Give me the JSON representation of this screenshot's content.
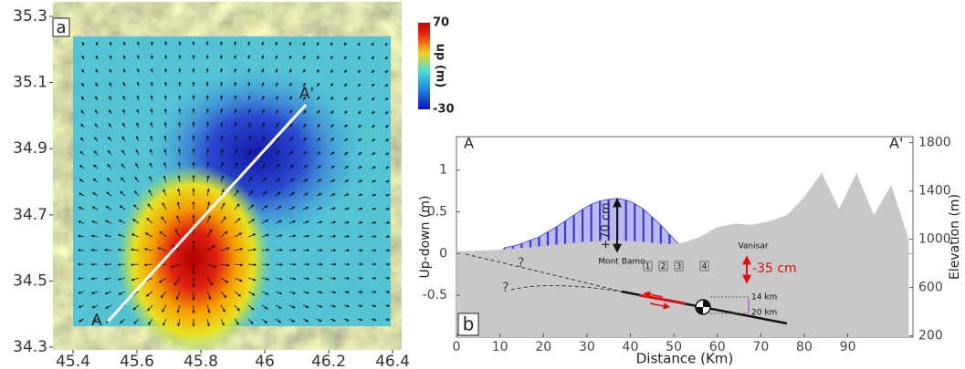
{
  "chart_data": [
    {
      "type": "heatmap",
      "xlim": [
        45.4,
        46.4
      ],
      "ylim": [
        34.3,
        35.3
      ],
      "xticks": [
        45.4,
        45.6,
        45.8,
        46,
        46.2,
        46.4
      ],
      "yticks": [
        34.3,
        34.5,
        34.7,
        34.9,
        35.1,
        35.3
      ],
      "clim": [
        -30,
        70
      ],
      "cticks": [
        70,
        -30
      ],
      "clabel": "up (m)",
      "annotations": [
        "a",
        "A",
        "A'"
      ]
    },
    {
      "type": "profile",
      "xlabel": "Distance (Km)",
      "ylabel": "Up-down (m)",
      "y2label": "Elevation (m)",
      "xlim": [
        0,
        105
      ],
      "ylim": [
        -1,
        1.4
      ],
      "y2lim": [
        190,
        1850
      ],
      "xticks": [
        0,
        10,
        20,
        30,
        40,
        50,
        60,
        70,
        80,
        90
      ],
      "yticks": [
        -0.5,
        0,
        0.5,
        1
      ],
      "y2ticks": [
        200,
        600,
        1000,
        1400,
        1800
      ],
      "series": [
        {
          "color": "#3a3ad0",
          "x": [
            11,
            13,
            15,
            17,
            19,
            21,
            23,
            25,
            27,
            29,
            31,
            33,
            35,
            37,
            39,
            41,
            43,
            45,
            47,
            49,
            51,
            53,
            55,
            57,
            59,
            61,
            63,
            65,
            67,
            69,
            71,
            73,
            75,
            77,
            79,
            81,
            83,
            85,
            87,
            89,
            91,
            93,
            95,
            97,
            99,
            101,
            103
          ],
          "values": [
            0.07,
            0.09,
            0.12,
            0.16,
            0.2,
            0.26,
            0.32,
            0.39,
            0.46,
            0.53,
            0.59,
            0.63,
            0.65,
            0.66,
            0.64,
            0.6,
            0.53,
            0.44,
            0.34,
            0.23,
            0.12,
            0.02,
            -0.07,
            -0.15,
            -0.22,
            -0.28,
            -0.32,
            -0.35,
            -0.36,
            -0.35,
            -0.32,
            -0.28,
            -0.24,
            -0.2,
            -0.16,
            -0.13,
            -0.1,
            -0.08,
            -0.06,
            -0.05,
            -0.04,
            -0.03,
            -0.03,
            -0.02,
            -0.02,
            -0.01,
            -0.01
          ]
        },
        {
          "color": "#c8c8c8",
          "axis": "y2",
          "x": [
            0,
            4,
            8,
            12,
            16,
            20,
            24,
            28,
            32,
            36,
            40,
            44,
            48,
            52,
            56,
            60,
            64,
            68,
            72,
            76,
            80,
            84,
            88,
            92,
            96,
            100,
            104
          ],
          "values": [
            900,
            905,
            910,
            920,
            930,
            945,
            960,
            975,
            985,
            990,
            985,
            975,
            960,
            970,
            1020,
            1100,
            1130,
            1120,
            1150,
            1200,
            1350,
            1550,
            1250,
            1550,
            1200,
            1450,
            1000
          ]
        }
      ],
      "annotations": [
        "A",
        "A'",
        "b",
        "+70 cm",
        "-35 cm",
        "Mont Bamo",
        "1",
        "2",
        "3",
        "4",
        "Vanisar",
        "?",
        "?",
        "14 km",
        "20 km"
      ]
    }
  ]
}
